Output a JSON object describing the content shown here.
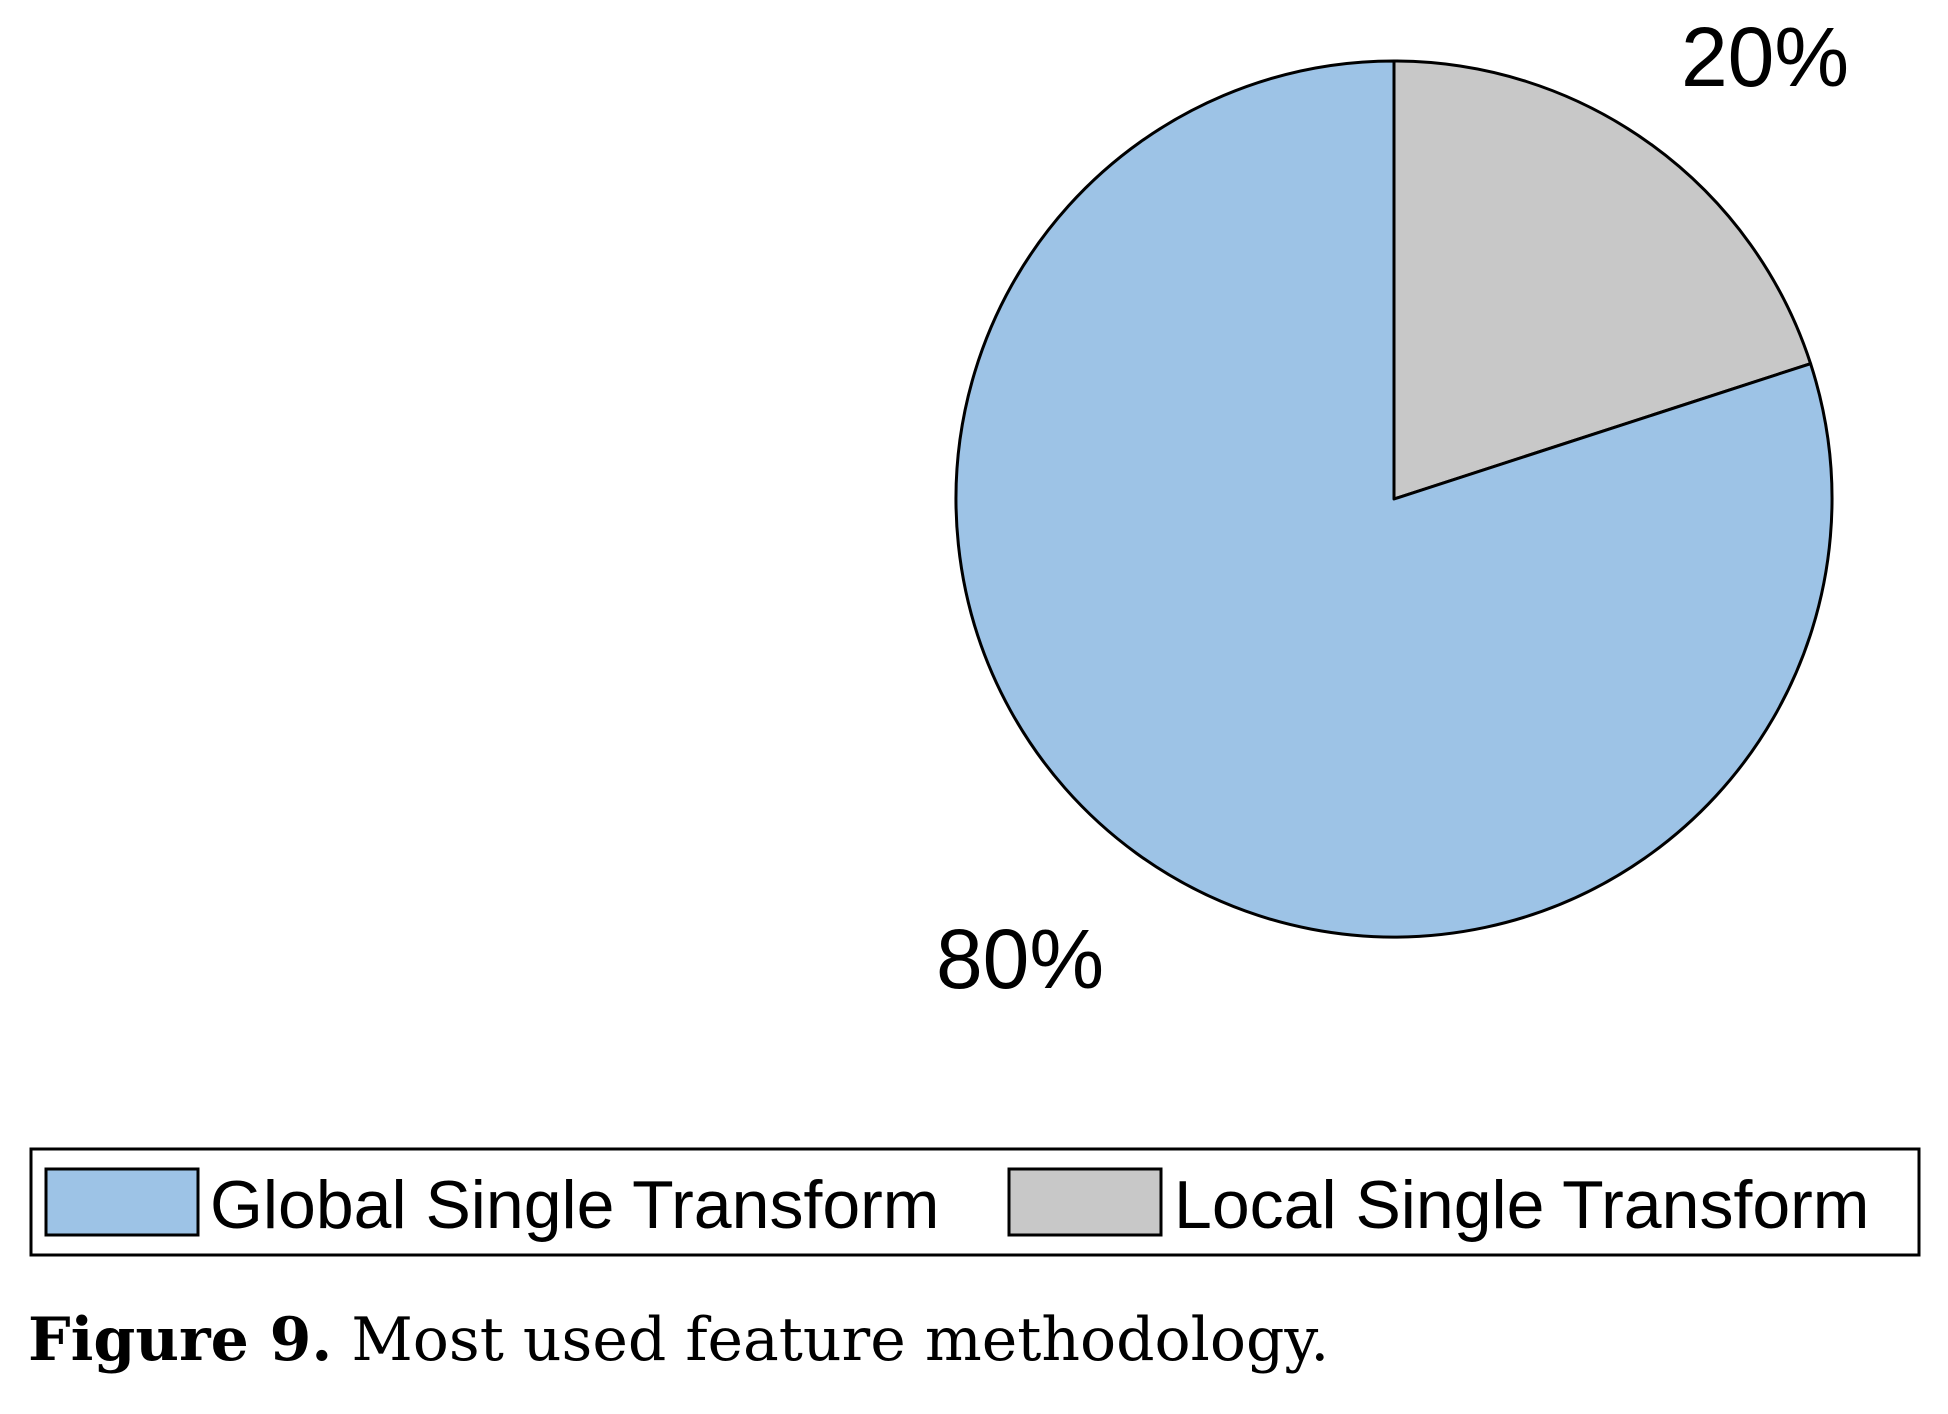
{
  "chart_data": {
    "type": "pie",
    "title": "",
    "slices": [
      {
        "label": "Global Single Transform",
        "value": 80,
        "value_label": "80%",
        "color": "#9DC3E6"
      },
      {
        "label": "Local Single Transform",
        "value": 20,
        "value_label": "20%",
        "color": "#C8C8C8"
      }
    ],
    "start_angle": "12 o'clock",
    "direction": "clockwise, Local Single Transform first",
    "legend": {
      "position": "bottom",
      "orientation": "horizontal",
      "entries": [
        "Global Single Transform",
        "Local Single Transform"
      ]
    },
    "outline_color": "#000000"
  },
  "caption": {
    "label": "Figure 9.",
    "text": "Most used feature methodology."
  }
}
